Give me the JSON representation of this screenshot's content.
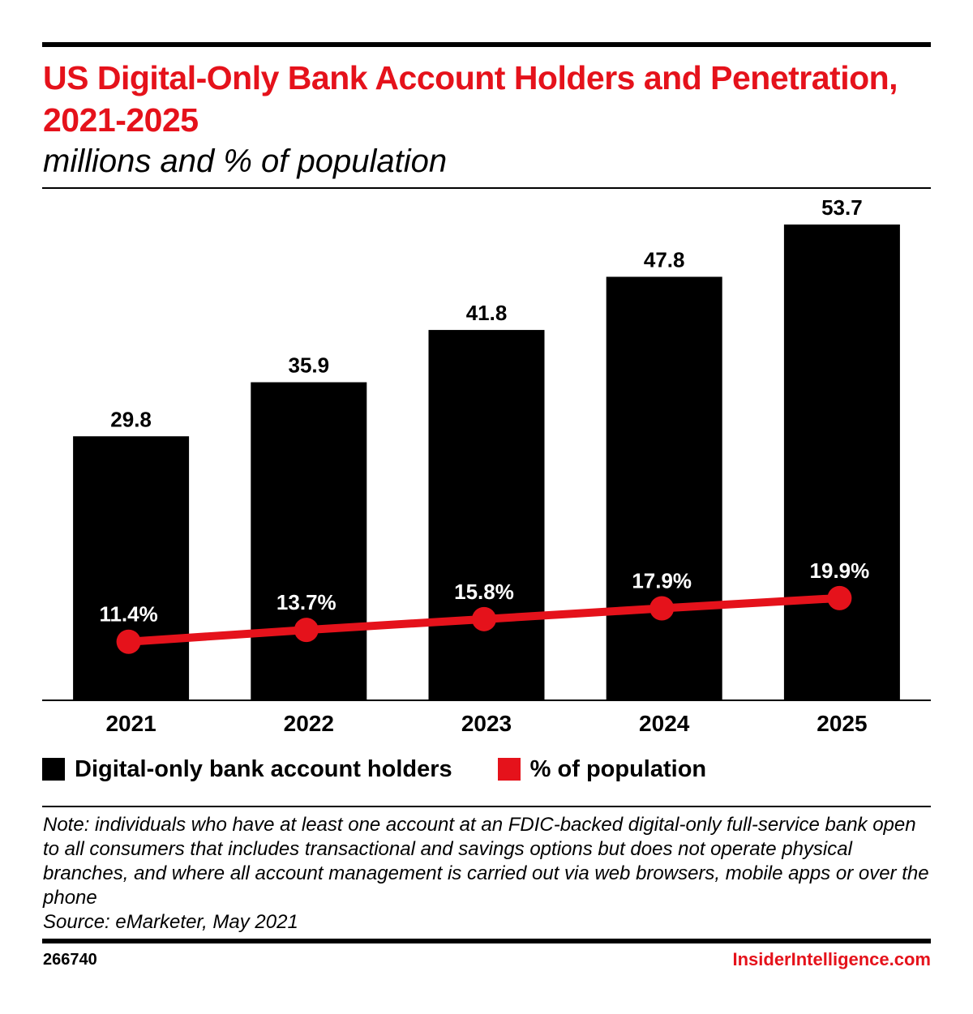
{
  "header": {
    "title": "US Digital-Only Bank Account Holders and Penetration, 2021-2025",
    "subtitle": "millions and % of population"
  },
  "chart_data": {
    "type": "bar",
    "categories": [
      "2021",
      "2022",
      "2023",
      "2024",
      "2025"
    ],
    "series": [
      {
        "name": "Digital-only bank account holders",
        "type": "bar",
        "values": [
          29.8,
          35.9,
          41.8,
          47.8,
          53.7
        ],
        "labels": [
          "29.8",
          "35.9",
          "41.8",
          "47.8",
          "53.7"
        ],
        "color": "#000000"
      },
      {
        "name": "% of population",
        "type": "line",
        "values": [
          11.4,
          13.7,
          15.8,
          17.9,
          19.9
        ],
        "labels": [
          "11.4%",
          "13.7%",
          "15.8%",
          "17.9%",
          "19.9%"
        ],
        "color": "#e5121b"
      }
    ],
    "ylim": [
      0,
      58
    ],
    "y2lim": [
      0,
      100
    ],
    "grid": false,
    "legend": "bottom-left"
  },
  "legend": {
    "items": [
      {
        "label": "Digital-only bank account holders",
        "color": "#000000"
      },
      {
        "label": "% of population",
        "color": "#e5121b"
      }
    ]
  },
  "note": {
    "text": "Note: individuals who have at least one account at an FDIC-backed digital-only full-service bank open to all consumers that includes transactional and savings options but does not operate physical branches, and where all account management is carried out via web browsers, mobile apps or over the phone",
    "source": "Source: eMarketer, May 2021"
  },
  "footer": {
    "chart_id": "266740",
    "brand": "InsiderIntelligence.com"
  },
  "colors": {
    "accent": "#e5121b",
    "bars": "#000000"
  }
}
